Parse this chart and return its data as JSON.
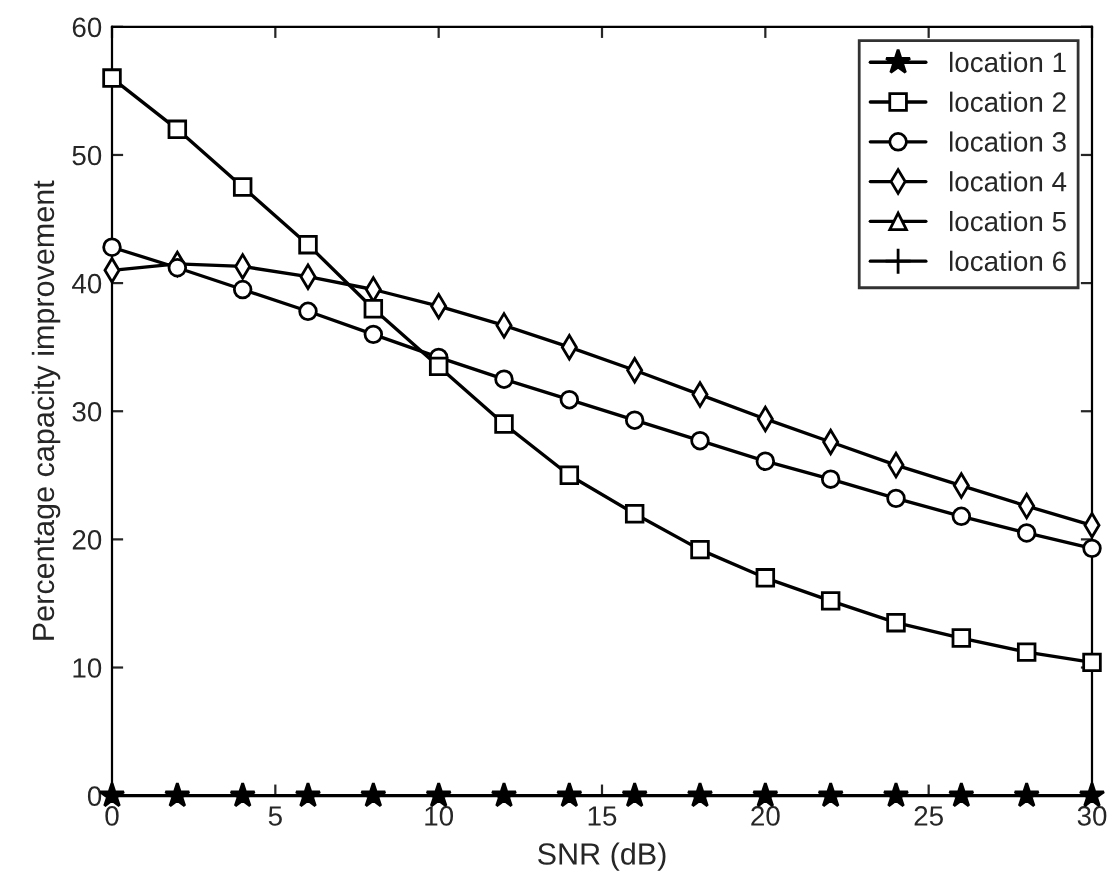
{
  "chart_data": {
    "type": "line",
    "xlabel": "SNR (dB)",
    "ylabel": "Percentage capacity improvement",
    "x": [
      0,
      2,
      4,
      6,
      8,
      10,
      12,
      14,
      16,
      18,
      20,
      22,
      24,
      26,
      28,
      30
    ],
    "xlim": [
      0,
      30
    ],
    "xticks": [
      0,
      5,
      10,
      15,
      20,
      25,
      30
    ],
    "ylim": [
      0,
      60
    ],
    "yticks": [
      0,
      10,
      20,
      30,
      40,
      50,
      60
    ],
    "grid": false,
    "legend": "top right",
    "series": [
      {
        "name": "location 1",
        "color": "#000000",
        "marker": "star",
        "values": [
          0,
          0,
          0,
          0,
          0,
          0,
          0,
          0,
          0,
          0,
          0,
          0,
          0,
          0,
          0,
          0
        ]
      },
      {
        "name": "location 2",
        "color": "#000000",
        "marker": "square",
        "values": [
          56,
          52,
          47.5,
          43,
          38,
          33.5,
          29,
          25,
          22,
          19.2,
          17,
          15.2,
          13.5,
          12.3,
          11.2,
          10.4
        ]
      },
      {
        "name": "location 3",
        "color": "#000000",
        "marker": "circle",
        "values": [
          42.8,
          41.2,
          39.5,
          37.8,
          36,
          34.2,
          32.5,
          30.9,
          29.3,
          27.7,
          26.1,
          24.7,
          23.2,
          21.8,
          20.5,
          19.3
        ]
      },
      {
        "name": "location 4",
        "color": "#000000",
        "marker": "diamond",
        "values": [
          41,
          41.5,
          41.3,
          40.5,
          39.5,
          38.2,
          36.7,
          35,
          33.2,
          31.3,
          29.4,
          27.6,
          25.8,
          24.2,
          22.6,
          21.1
        ]
      },
      {
        "name": "location 5",
        "color": "#000000",
        "marker": "triangle",
        "values": [
          null,
          null,
          null,
          null,
          null,
          null,
          null,
          null,
          null,
          null,
          null,
          null,
          null,
          null,
          null,
          null
        ]
      },
      {
        "name": "location 6",
        "color": "#000000",
        "marker": "cross",
        "values": [
          null,
          null,
          null,
          null,
          null,
          null,
          null,
          null,
          null,
          null,
          null,
          null,
          null,
          null,
          null,
          null
        ]
      }
    ]
  }
}
